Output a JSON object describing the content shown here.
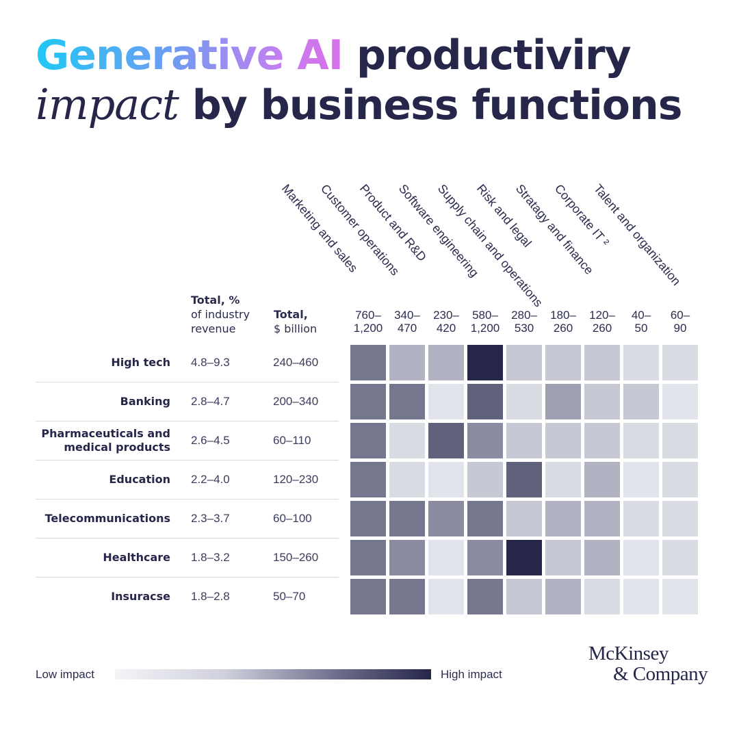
{
  "title": {
    "gradient": "Generative AI",
    "line1_rest": " productiviry",
    "line2_italic": "impact",
    "line2_rest": " by business functions"
  },
  "headers": {
    "pct_bold": "Total, %",
    "pct_rest1": "of industry",
    "pct_rest2": "revenue",
    "bil_bold": "Total,",
    "bil_rest": "$ billion"
  },
  "legend": {
    "low": "Low impact",
    "high": "High impact"
  },
  "logo": {
    "line1": "McKinsey",
    "line2": "& Company"
  },
  "chart_data": {
    "type": "heatmap",
    "title": "Generative AI productiviry impact by business functions",
    "columns": [
      {
        "name": "Marketing and sales",
        "range": "760–1,200"
      },
      {
        "name": "Customer operations",
        "range": "340–470"
      },
      {
        "name": "Product and R&D",
        "range": "230–420"
      },
      {
        "name": "Software engineering",
        "range": "580–1,200"
      },
      {
        "name": "Supply chain and operations",
        "range": "280–530"
      },
      {
        "name": "Risk and legal",
        "range": "180–260"
      },
      {
        "name": "Stratagy and finance",
        "range": "120–260"
      },
      {
        "name": "Corporate IT ²",
        "range": "40–50"
      },
      {
        "name": "Talent and organization",
        "range": "60–90"
      }
    ],
    "rows": [
      {
        "name": "High tech",
        "pct": "4.8–9.3",
        "billion": "240–460",
        "impact": [
          3,
          1.5,
          1.5,
          5,
          1,
          1,
          1,
          0.5,
          0.5
        ]
      },
      {
        "name": "Banking",
        "pct": "2.8–4.7",
        "billion": "200–340",
        "impact": [
          3,
          3,
          0.3,
          3.5,
          0.5,
          2,
          1,
          1,
          0.3
        ]
      },
      {
        "name": "Pharmaceuticals and medical products",
        "pct": "2.6–4.5",
        "billion": "60–110",
        "impact": [
          3,
          0.5,
          3.5,
          2.5,
          1,
          1,
          1,
          0.5,
          0.5
        ]
      },
      {
        "name": "Education",
        "pct": "2.2–4.0",
        "billion": "120–230",
        "impact": [
          3,
          0.5,
          0.3,
          1,
          3.5,
          0.5,
          1.5,
          0.3,
          0.5
        ]
      },
      {
        "name": "Telecommunications",
        "pct": "2.3–3.7",
        "billion": "60–100",
        "impact": [
          3,
          3,
          2.5,
          3,
          1,
          1.5,
          1.5,
          0.5,
          0.5
        ]
      },
      {
        "name": "Healthcare",
        "pct": "1.8–3.2",
        "billion": "150–260",
        "impact": [
          3,
          2.5,
          0.3,
          2.5,
          5,
          1,
          1.5,
          0.3,
          0.5
        ]
      },
      {
        "name": "Insuracse",
        "pct": "1.8–2.8",
        "billion": "50–70",
        "impact": [
          3,
          3,
          0.3,
          3,
          1,
          1.5,
          0.5,
          0.3,
          0.3
        ]
      }
    ],
    "scale": {
      "min": 0,
      "max": 5,
      "low_color": "#eef0f5",
      "high_color": "#25264a"
    }
  }
}
